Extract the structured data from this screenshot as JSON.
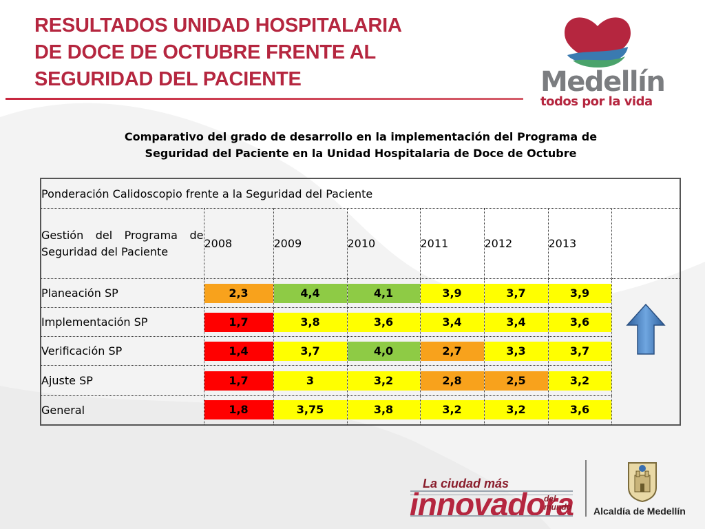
{
  "slide": {
    "title_lines": [
      "RESULTADOS UNIDAD HOSPITALARIA",
      "DE DOCE DE OCTUBRE FRENTE AL",
      "SEGURIDAD DEL PACIENTE"
    ],
    "subtitle_lines": [
      "Comparativo del grado de desarrollo en la implementación del Programa de",
      "Seguridad del Paciente  en la Unidad Hospitalaria de Doce de Octubre"
    ]
  },
  "logo": {
    "word": "Medellín",
    "tagline": "todos por la vida",
    "colors": {
      "heart": "#b5263f",
      "hills_blue": "#3a7ab0",
      "hills_green": "#4aa36b",
      "word": "#7b7d80"
    }
  },
  "table": {
    "header": "Ponderación Calidoscopio frente a la Seguridad del Paciente",
    "row_header_label": "Gestión del Programa de Seguridad del Paciente",
    "years": [
      "2008",
      "2009",
      "2010",
      "2011",
      "2012",
      "2013"
    ],
    "rows": [
      {
        "label": "Planeación SP",
        "values": [
          "2,3",
          "4,4",
          "4,1",
          "3,9",
          "3,7",
          "3,9"
        ],
        "colors": [
          "orange",
          "green",
          "green",
          "yellow",
          "yellow",
          "yellow"
        ]
      },
      {
        "label": "Implementación  SP",
        "values": [
          "1,7",
          "3,8",
          "3,6",
          "3,4",
          "3,4",
          "3,6"
        ],
        "colors": [
          "red",
          "yellow",
          "yellow",
          "yellow",
          "yellow",
          "yellow"
        ]
      },
      {
        "label": "Verificación  SP",
        "values": [
          "1,4",
          "3,7",
          "4,0",
          "2,7",
          "3,3",
          "3,7"
        ],
        "colors": [
          "red",
          "yellow",
          "green",
          "orange",
          "yellow",
          "yellow"
        ]
      },
      {
        "label": "Ajuste  SP",
        "values": [
          "1,7",
          "3",
          "3,2",
          "2,8",
          "2,5",
          "3,2"
        ],
        "colors": [
          "red",
          "yellow",
          "yellow",
          "orange",
          "orange",
          "yellow"
        ]
      },
      {
        "label": "General",
        "values": [
          "1,8",
          "3,75",
          "3,8",
          "3,2",
          "3,2",
          "3,6"
        ],
        "colors": [
          "red",
          "yellow",
          "yellow",
          "yellow",
          "yellow",
          "yellow"
        ]
      }
    ],
    "trend_icon": "up-arrow-icon",
    "color_map": {
      "red": "#ff0000",
      "orange": "#f8a21c",
      "green": "#8ecb45",
      "yellow": "#ffff00"
    }
  },
  "footer": {
    "slogan_small": "La ciudad más",
    "slogan_big": "innovadora",
    "slogan_del": "del",
    "slogan_mundo": "mundo",
    "alcaldia": "Alcaldía de Medellín",
    "crest_icon": "coat-of-arms-icon"
  }
}
